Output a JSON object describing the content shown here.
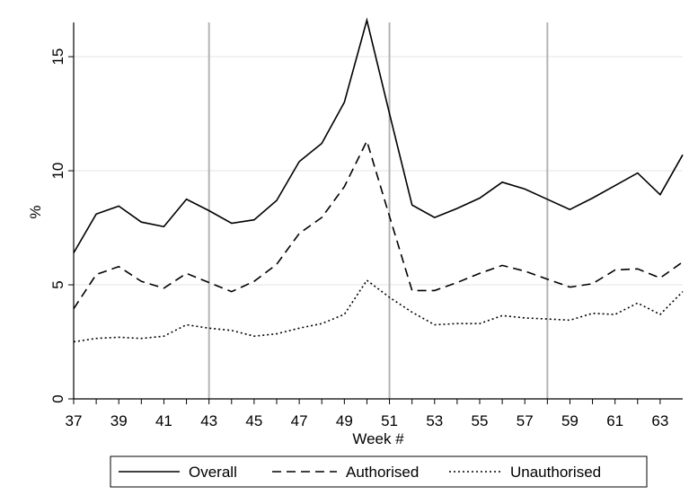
{
  "chart_data": {
    "type": "line",
    "title": "",
    "xlabel": "Week #",
    "ylabel": "%",
    "xlim": [
      37,
      64
    ],
    "ylim": [
      0,
      16.5
    ],
    "x_ticks": [
      37,
      39,
      41,
      43,
      45,
      47,
      49,
      51,
      53,
      55,
      57,
      59,
      61,
      63
    ],
    "x_tick_labels": [
      "37",
      "39",
      "41",
      "43",
      "45",
      "47",
      "49",
      "51",
      "53",
      "55",
      "57",
      "59",
      "61",
      "63"
    ],
    "y_ticks": [
      0,
      5,
      10,
      15
    ],
    "y_tick_labels": [
      "0",
      "5",
      "10",
      "15"
    ],
    "grid": "horizontal",
    "vertical_reference_lines": [
      43,
      51,
      58
    ],
    "legend_position": "bottom",
    "x": [
      37,
      38,
      39,
      40,
      41,
      42,
      43,
      44,
      45,
      46,
      47,
      48,
      49,
      50,
      51,
      52,
      53,
      54,
      55,
      56,
      57,
      58,
      59,
      60,
      61,
      62,
      63,
      64
    ],
    "series": [
      {
        "name": "Overall",
        "line_style": "solid",
        "values": [
          6.4,
          8.1,
          8.45,
          7.75,
          7.55,
          8.75,
          8.25,
          7.7,
          7.85,
          8.7,
          10.4,
          11.2,
          13.0,
          16.6,
          12.5,
          8.5,
          7.95,
          8.35,
          8.8,
          9.5,
          9.2,
          8.75,
          8.3,
          8.8,
          9.35,
          9.9,
          8.95,
          10.7
        ]
      },
      {
        "name": "Authorised",
        "line_style": "dashed",
        "values": [
          3.95,
          5.45,
          5.8,
          5.15,
          4.85,
          5.5,
          5.1,
          4.7,
          5.15,
          5.9,
          7.25,
          7.95,
          9.3,
          11.3,
          8.0,
          4.75,
          4.75,
          5.1,
          5.5,
          5.85,
          5.6,
          5.25,
          4.9,
          5.05,
          5.65,
          5.7,
          5.3,
          6.0
        ]
      },
      {
        "name": "Unauthorised",
        "line_style": "dotted",
        "values": [
          2.5,
          2.65,
          2.7,
          2.65,
          2.75,
          3.25,
          3.1,
          3.0,
          2.75,
          2.85,
          3.1,
          3.3,
          3.7,
          5.2,
          4.45,
          3.8,
          3.25,
          3.3,
          3.3,
          3.65,
          3.55,
          3.5,
          3.45,
          3.75,
          3.7,
          4.2,
          3.7,
          4.7
        ]
      }
    ]
  }
}
